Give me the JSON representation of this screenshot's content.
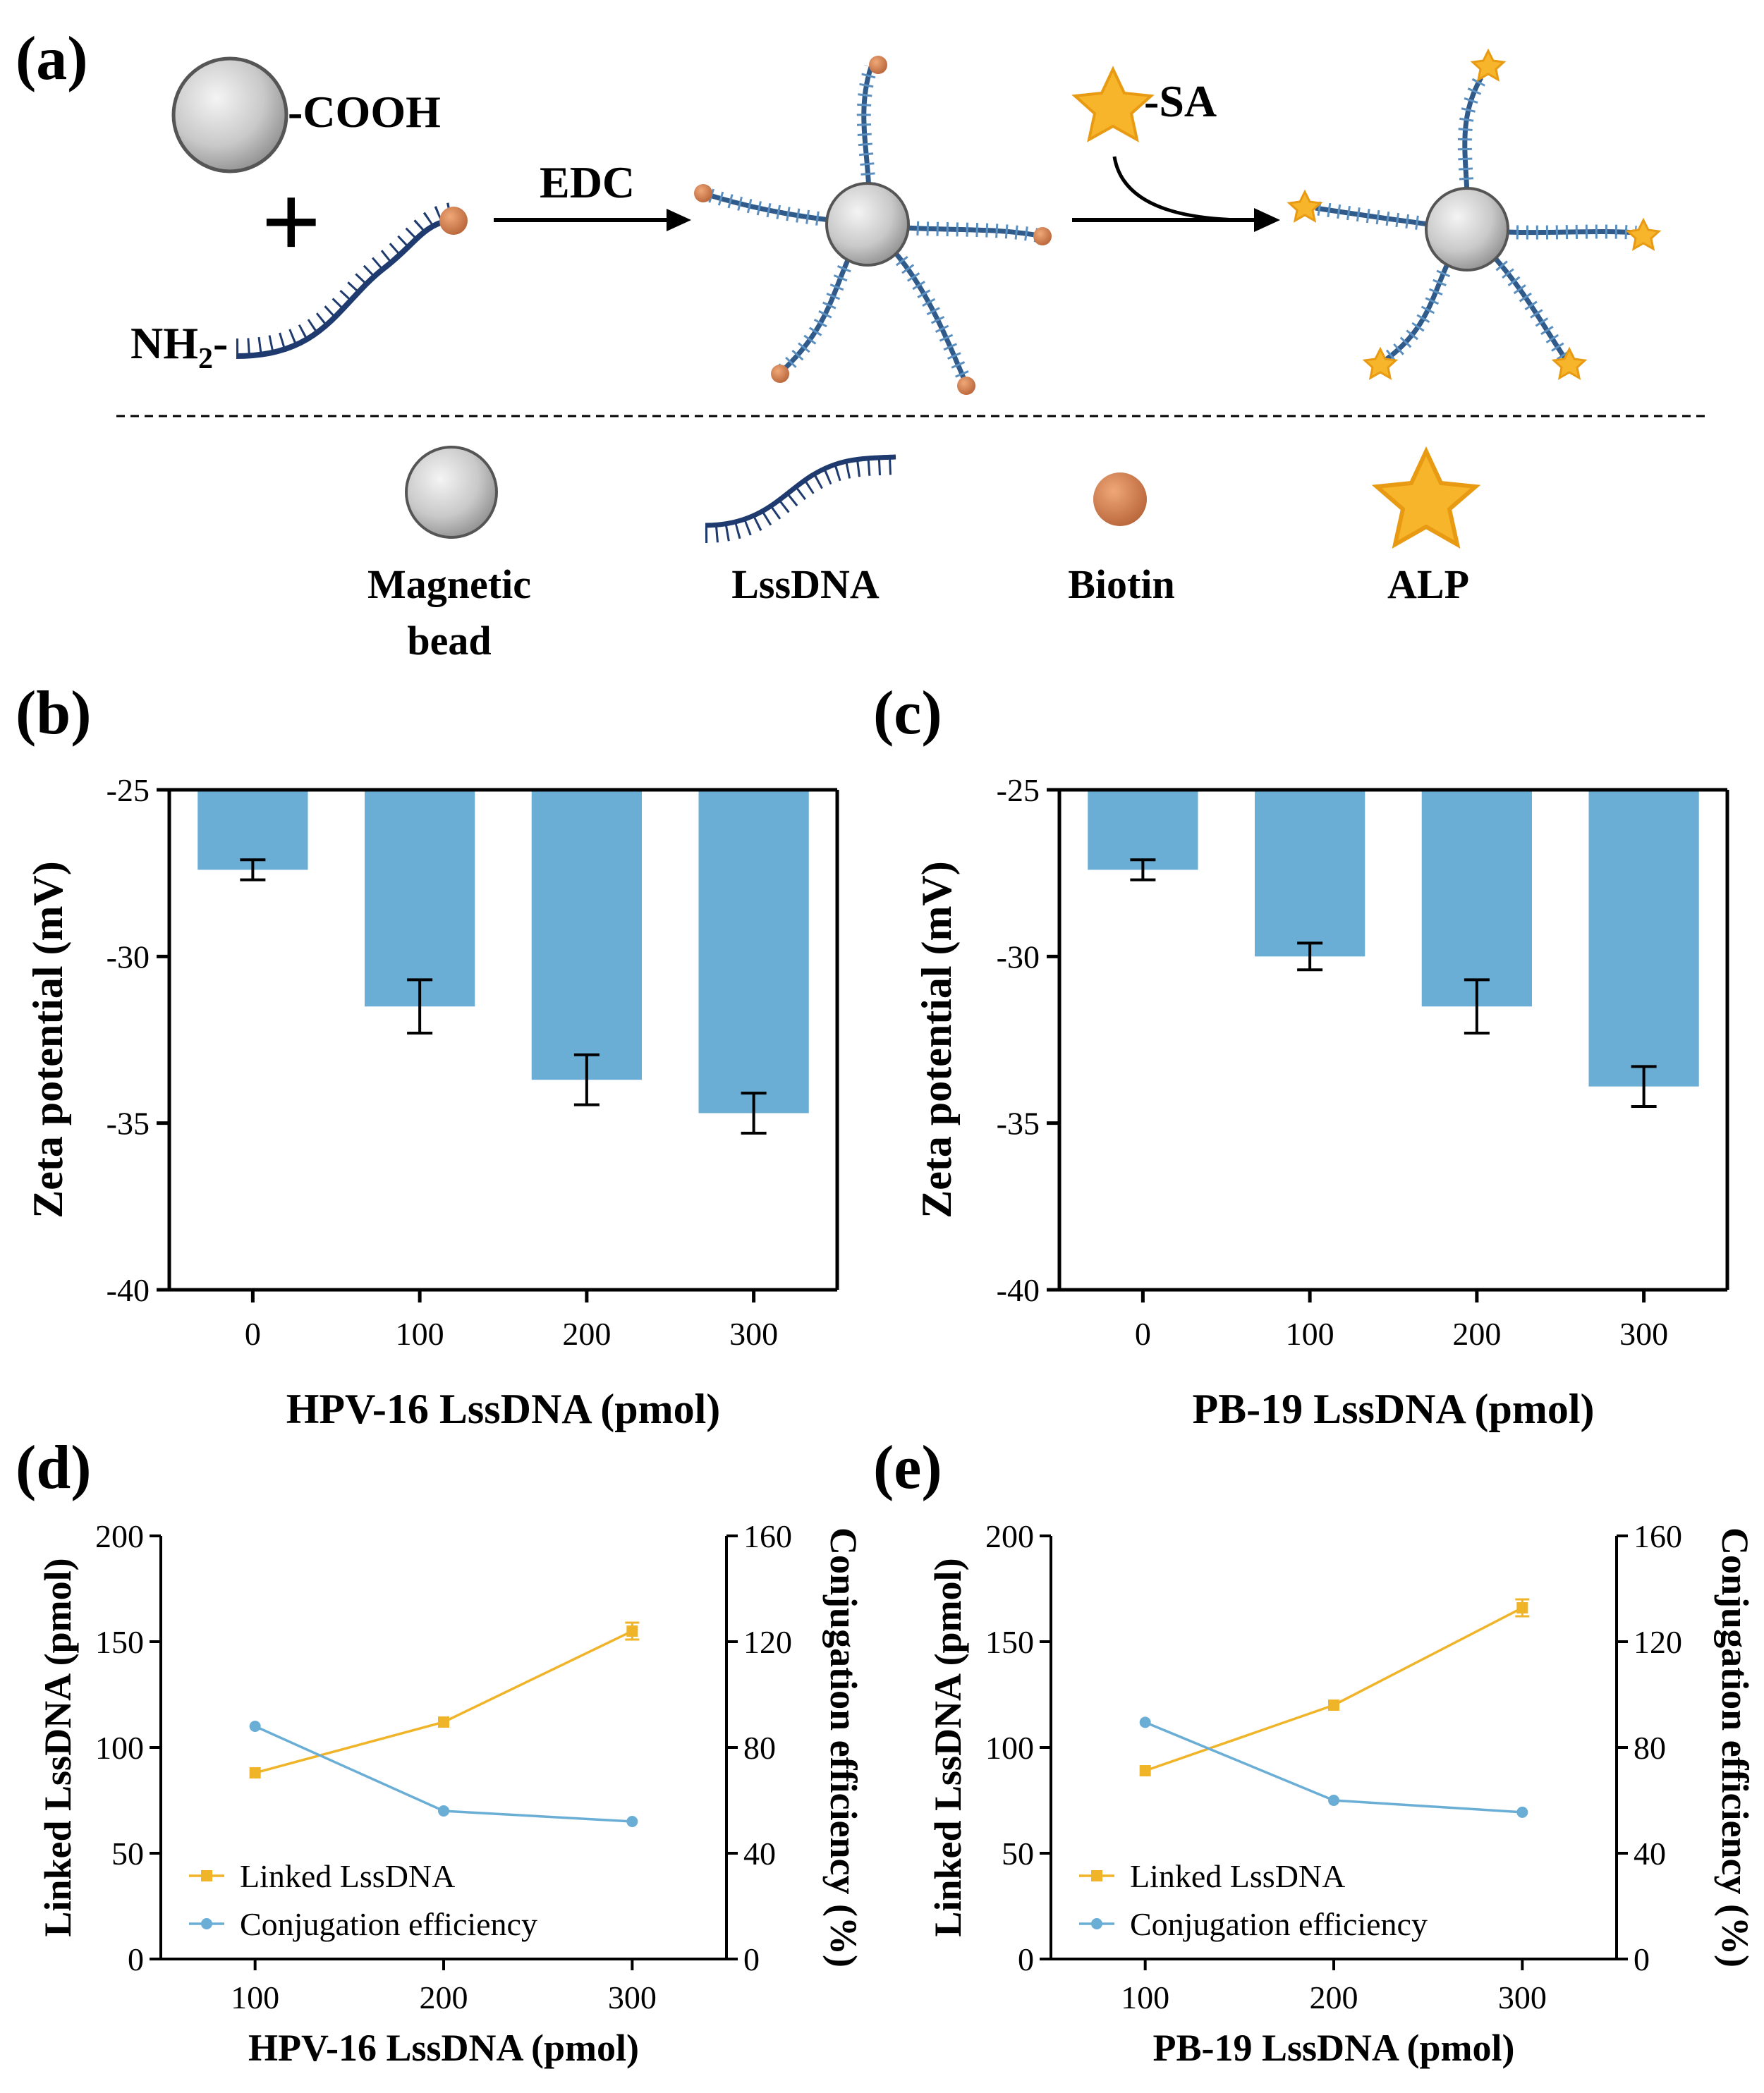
{
  "panels": {
    "a": "(a)",
    "b": "(b)",
    "c": "(c)",
    "d": "(d)",
    "e": "(e)"
  },
  "schematic": {
    "cooh": "-COOH",
    "plus": "+",
    "nh2": "NH",
    "nh2_sub": "2",
    "nh2_dash": "-",
    "edc": "EDC",
    "sa": "-SA",
    "legend": {
      "bead_line1": "Magnetic",
      "bead_line2": "bead",
      "dna": "LssDNA",
      "biotin": "Biotin",
      "alp": "ALP"
    }
  },
  "colors": {
    "bar": "#6aaed6",
    "linked": "#f0b429",
    "conj": "#6aaed6",
    "dna": "#1e3a6e",
    "biotin": "#d68450",
    "star": "#f7b52b",
    "bead": "#c8c8c8"
  },
  "chart_data": [
    {
      "id": "b",
      "type": "bar",
      "categories": [
        "0",
        "100",
        "200",
        "300"
      ],
      "values": [
        -27.4,
        -31.5,
        -33.7,
        -34.7
      ],
      "errors": [
        0.3,
        0.8,
        0.75,
        0.6
      ],
      "ylim": [
        -40,
        -25
      ],
      "yticks": [
        "-25",
        "-30",
        "-35",
        "-40"
      ],
      "xlabel": "HPV-16 LssDNA (pmol)",
      "ylabel": "Zeta potential (mV)"
    },
    {
      "id": "c",
      "type": "bar",
      "categories": [
        "0",
        "100",
        "200",
        "300"
      ],
      "values": [
        -27.4,
        -30.0,
        -31.5,
        -33.9
      ],
      "errors": [
        0.3,
        0.4,
        0.8,
        0.6
      ],
      "ylim": [
        -40,
        -25
      ],
      "yticks": [
        "-25",
        "-30",
        "-35",
        "-40"
      ],
      "xlabel": "PB-19 LssDNA (pmol)",
      "ylabel": "Zeta potential (mV)"
    },
    {
      "id": "d",
      "type": "line",
      "x": [
        "100",
        "200",
        "300"
      ],
      "series": [
        {
          "name": "Linked LssDNA",
          "axis": "left",
          "values": [
            88,
            112,
            155
          ],
          "errors": [
            1,
            1,
            4
          ]
        },
        {
          "name": "Conjugation efficiency",
          "axis": "right",
          "values": [
            88,
            56,
            52
          ]
        }
      ],
      "xlim": [
        50,
        350
      ],
      "ylim": [
        0,
        200
      ],
      "y2lim": [
        0,
        160
      ],
      "yticks": [
        "0",
        "50",
        "100",
        "150",
        "200"
      ],
      "y2ticks": [
        "0",
        "40",
        "80",
        "120",
        "160"
      ],
      "xlabel": "HPV-16 LssDNA (pmol)",
      "ylabel": "Linked LssDNA (pmol)",
      "y2label": "Conjugation efficiency (%)",
      "legend_position": "bottom-left"
    },
    {
      "id": "e",
      "type": "line",
      "x": [
        "100",
        "200",
        "300"
      ],
      "series": [
        {
          "name": "Linked LssDNA",
          "axis": "left",
          "values": [
            89,
            120,
            166
          ],
          "errors": [
            1,
            1,
            4
          ]
        },
        {
          "name": "Conjugation efficiency",
          "axis": "right",
          "values": [
            89.5,
            60,
            55.5
          ]
        }
      ],
      "xlim": [
        50,
        350
      ],
      "ylim": [
        0,
        200
      ],
      "y2lim": [
        0,
        160
      ],
      "yticks": [
        "0",
        "50",
        "100",
        "150",
        "200"
      ],
      "y2ticks": [
        "0",
        "40",
        "80",
        "120",
        "160"
      ],
      "xlabel": "PB-19 LssDNA (pmol)",
      "ylabel": "Linked LssDNA (pmol)",
      "y2label": "Conjugation efficiency (%)",
      "legend_position": "bottom-left"
    }
  ]
}
